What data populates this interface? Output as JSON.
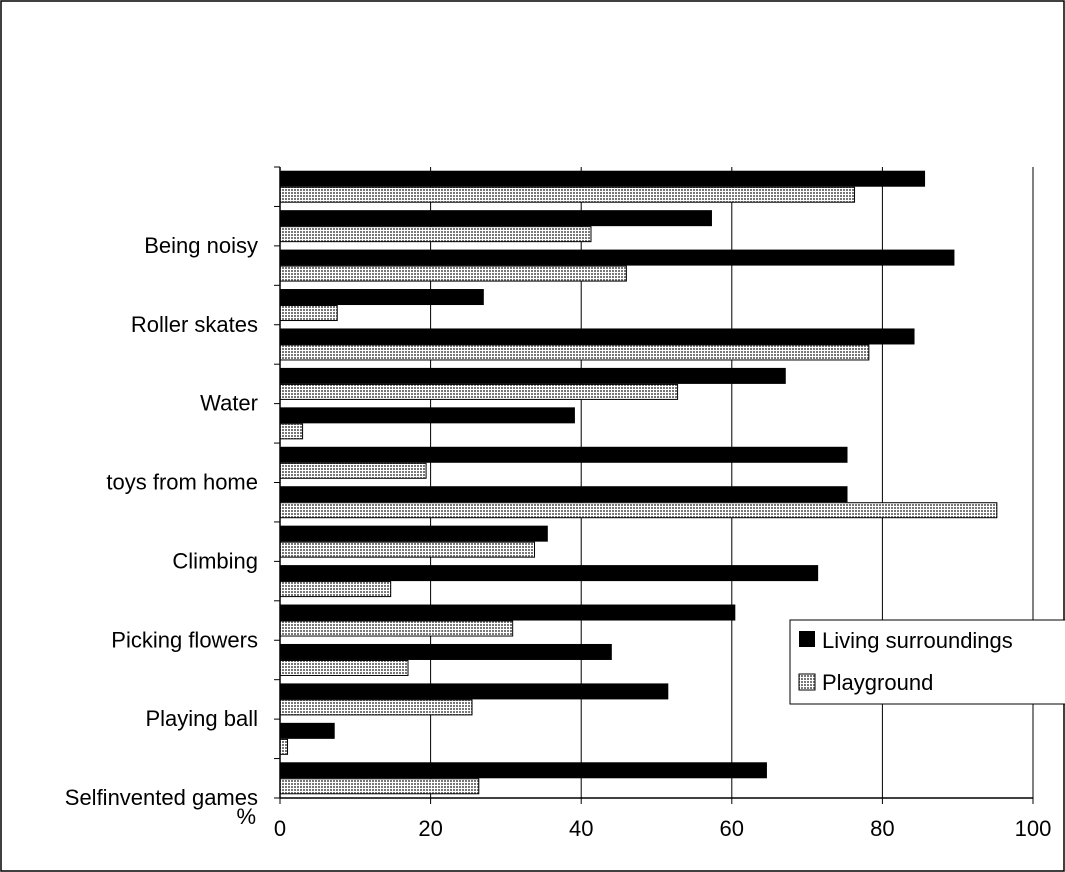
{
  "chart_data": {
    "type": "bar",
    "orientation": "horizontal",
    "x_unit": "%",
    "xlim": [
      0,
      100
    ],
    "x_ticks": [
      0,
      20,
      40,
      60,
      80,
      100
    ],
    "grid": "vertical",
    "legend_position": "right",
    "categories": [
      "",
      "Being noisy",
      "",
      "Roller skates",
      "",
      "Water",
      "",
      "toys from home",
      "",
      "Climbing",
      "",
      "Picking flowers",
      "",
      "Playing ball",
      "",
      "Selfinvented games"
    ],
    "series": [
      {
        "name": "Living surroundings",
        "pattern": "solid",
        "color": "#000000",
        "values": [
          85.6,
          57.3,
          89.5,
          27.0,
          84.2,
          67.1,
          39.1,
          75.3,
          75.3,
          35.5,
          71.4,
          60.4,
          44.0,
          51.5,
          7.2,
          64.6
        ]
      },
      {
        "name": "Playground",
        "pattern": "dotted",
        "color": "#b8b8b8",
        "values": [
          76.3,
          41.3,
          46.0,
          7.6,
          78.2,
          52.8,
          3.0,
          19.4,
          95.2,
          33.8,
          14.7,
          30.9,
          17.0,
          25.5,
          1.0,
          26.4
        ]
      }
    ]
  }
}
